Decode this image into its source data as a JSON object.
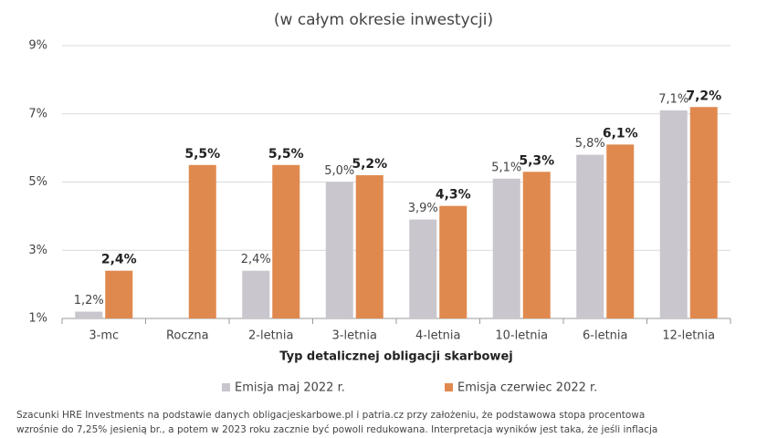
{
  "chart_data": {
    "type": "bar",
    "subtitle": "(w całym okresie inwestycji)",
    "x_label": "Typ detalicznej obligacji skarbowej",
    "categories": [
      "3-mc",
      "Roczna",
      "2-letnia",
      "3-letnia",
      "4-letnia",
      "10-letnia",
      "6-letnia",
      "12-letnia"
    ],
    "series": [
      {
        "name": "Emisja maj 2022 r.",
        "color": "#c9c6cd",
        "values": [
          1.2,
          null,
          2.4,
          5.0,
          3.9,
          5.1,
          5.8,
          7.1
        ],
        "value_labels": [
          "1,2%",
          null,
          "2,4%",
          "5,0%",
          "3,9%",
          "5,1%",
          "5,8%",
          "7,1%"
        ]
      },
      {
        "name": "Emisja czerwiec 2022 r.",
        "color": "#e0894f",
        "values": [
          2.4,
          5.5,
          5.5,
          5.2,
          4.3,
          5.3,
          6.1,
          7.2
        ],
        "value_labels": [
          "2,4%",
          "5,5%",
          "5,5%",
          "5,2%",
          "4,3%",
          "5,3%",
          "6,1%",
          "7,2%"
        ]
      }
    ],
    "ylim": [
      1,
      9
    ],
    "yticks": [
      {
        "value": 1,
        "label": "1%"
      },
      {
        "value": 3,
        "label": "3%"
      },
      {
        "value": 5,
        "label": "5%"
      },
      {
        "value": 7,
        "label": "7%"
      },
      {
        "value": 9,
        "label": "9%"
      }
    ],
    "grid": true,
    "notes": [
      "Szacunki HRE Investments na podstawie danych obligacjeskarbowe.pl i patria.cz przy założeniu, że podstawowa stopa procentowa",
      "wzrośnie do 7,25% jesienią br., a potem w 2023 roku zacznie być powoli redukowana. Interpretacja wyników jest taka, że jeśli inflacja"
    ]
  }
}
